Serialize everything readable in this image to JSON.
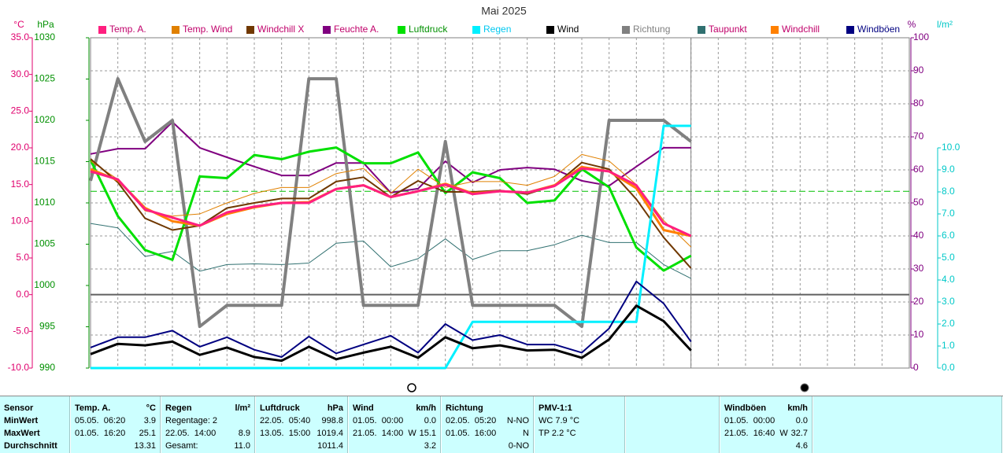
{
  "chart_data": {
    "type": "line",
    "title": "Mai 2025",
    "categories": [
      null,
      null,
      null,
      null,
      null,
      null,
      null,
      null,
      null,
      null,
      null,
      null,
      null,
      null,
      null,
      null,
      null,
      null,
      null,
      null,
      null,
      null,
      null,
      null,
      null,
      null,
      null,
      null,
      null,
      null,
      null
    ],
    "ylabel": "°C",
    "ycolor": "#e0006e",
    "ylim": [
      -10,
      35
    ],
    "yticks": [
      {
        "value": 35,
        "label": "35.0"
      },
      {
        "value": 30,
        "label": "30.0"
      },
      {
        "value": 25,
        "label": "25.0"
      },
      {
        "value": 20,
        "label": "20.0"
      },
      {
        "value": 15,
        "label": "15.0"
      },
      {
        "value": 10,
        "label": "10.0"
      },
      {
        "value": 5,
        "label": "5.0"
      },
      {
        "value": 0,
        "label": "0.0"
      },
      {
        "value": -5,
        "label": "-5.0"
      },
      {
        "value": -10,
        "label": "-10.0"
      }
    ],
    "y2label": "hPa",
    "y2color": "#009000",
    "y2lim": [
      990,
      1030
    ],
    "y2ticks": [
      1030,
      1025,
      1020,
      1015,
      1010,
      1005,
      1000,
      995,
      990
    ],
    "y3label": "%",
    "y3color": "#800080",
    "y3lim": [
      0,
      100
    ],
    "y3ticks": [
      100,
      90,
      80,
      70,
      60,
      50,
      40,
      30,
      20,
      10,
      0
    ],
    "y4label": "l/m²",
    "y4color": "#00c8c8",
    "y4lim": [
      0,
      15
    ],
    "y4ticks": [
      {
        "value": 10,
        "label": "10.0"
      },
      {
        "value": 9,
        "label": "9.0"
      },
      {
        "value": 8,
        "label": "8.0"
      },
      {
        "value": 7,
        "label": "7.0"
      },
      {
        "value": 6,
        "label": "6.0"
      },
      {
        "value": 5,
        "label": "5.0"
      },
      {
        "value": 4,
        "label": "4.0"
      },
      {
        "value": 3,
        "label": "3.0"
      },
      {
        "value": 2,
        "label": "2.0"
      },
      {
        "value": 1,
        "label": "1.0"
      },
      {
        "value": 0,
        "label": "0.0"
      }
    ],
    "grid": true,
    "series": [
      {
        "name": "Temp. A.",
        "color": "#ff1f7f",
        "text_color": "#c0006a",
        "width": 3,
        "axis": "y",
        "values": [
          16.8,
          15.7,
          11.6,
          10.5,
          9.4,
          11.2,
          12.0,
          12.5,
          12.5,
          14.4,
          14.9,
          13.3,
          14.1,
          15.0,
          13.7,
          14.1,
          13.9,
          14.8,
          17.2,
          16.8,
          14.9,
          9.7,
          8.0,
          null,
          null,
          null,
          null,
          null,
          null,
          null,
          null
        ]
      },
      {
        "name": "Temp. Wind",
        "color": "#e08000",
        "text_color": "#c0006a",
        "width": 1,
        "axis": "y",
        "values": [
          18.2,
          15.7,
          11.4,
          10.7,
          11.0,
          12.5,
          13.8,
          14.6,
          14.6,
          16.5,
          17.2,
          13.8,
          17.1,
          14.6,
          15.4,
          15.4,
          14.9,
          16.1,
          19.1,
          18.2,
          15.0,
          10.1,
          6.5,
          null,
          null,
          null,
          null,
          null,
          null,
          null,
          null
        ]
      },
      {
        "name": "Windchill X",
        "color": "#703800",
        "text_color": "#c0006a",
        "width": 2,
        "axis": "y",
        "values": [
          18.5,
          15.3,
          10.4,
          8.8,
          9.4,
          11.8,
          12.5,
          13.1,
          13.1,
          15.4,
          16.0,
          13.3,
          15.5,
          14.0,
          14.0,
          14.2,
          13.7,
          14.9,
          18.0,
          17.1,
          13.0,
          7.8,
          3.6,
          null,
          null,
          null,
          null,
          null,
          null,
          null,
          null
        ]
      },
      {
        "name": "Feuchte A.",
        "color": "#800080",
        "text_color": "#c0006a",
        "width": 2,
        "axis": "y3",
        "values": [
          64.8,
          66.4,
          66.4,
          74.5,
          66.7,
          63.8,
          61.0,
          58.3,
          58.3,
          62.1,
          62.1,
          53.1,
          54.3,
          62.6,
          56.2,
          60.0,
          60.7,
          60.2,
          56.7,
          55.2,
          61.0,
          66.7,
          66.7,
          null,
          null,
          null,
          null,
          null,
          null,
          null,
          null
        ]
      },
      {
        "name": "Luftdruck",
        "color": "#00e000",
        "text_color": "#009000",
        "width": 3,
        "axis": "y2",
        "values": [
          1015.2,
          1008.4,
          1004.3,
          1003.1,
          1013.2,
          1013.0,
          1015.8,
          1015.3,
          1016.2,
          1016.7,
          1014.8,
          1014.8,
          1016.1,
          1011.2,
          1013.7,
          1013.0,
          1010.0,
          1010.3,
          1014.1,
          1011.9,
          1004.6,
          1001.8,
          1003.6,
          null,
          null,
          null,
          null,
          null,
          null,
          null,
          null
        ]
      },
      {
        "name": "Regen",
        "color": "#00f0ff",
        "text_color": "#00c8f0",
        "width": 3,
        "axis": "y4",
        "values": [
          0,
          0,
          0,
          0,
          0,
          0,
          0,
          0,
          0,
          0,
          0,
          0,
          0,
          0,
          2.1,
          2.1,
          2.1,
          2.1,
          2.1,
          2.1,
          2.1,
          11.0,
          11.0,
          null,
          null,
          null,
          null,
          null,
          null,
          null,
          null
        ]
      },
      {
        "name": "Wind",
        "color": "#000000",
        "text_color": "#000000",
        "width": 3,
        "axis": "y",
        "values": [
          -8.1,
          -6.7,
          -6.9,
          -6.4,
          -8.2,
          -7.2,
          -8.5,
          -9.0,
          -7.1,
          -8.8,
          -7.9,
          -7.1,
          -8.6,
          -5.8,
          -7.3,
          -6.9,
          -7.6,
          -7.5,
          -8.6,
          -6.1,
          -1.5,
          -3.6,
          -7.6,
          null,
          null,
          null,
          null,
          null,
          null,
          null,
          null
        ]
      },
      {
        "name": "Richtung",
        "color": "#808080",
        "text_color": "#808080",
        "width": 4,
        "axis": "y3",
        "values": [
          56.7,
          87.6,
          68.6,
          75.0,
          12.6,
          19.0,
          19.0,
          19.0,
          87.6,
          87.6,
          19.0,
          19.0,
          19.0,
          68.6,
          19.0,
          19.0,
          19.0,
          19.0,
          12.6,
          75.0,
          75.0,
          75.0,
          68.6,
          null,
          null,
          null,
          null,
          null,
          null,
          null,
          null
        ]
      },
      {
        "name": "Taupunkt",
        "color": "#307070",
        "text_color": "#c0006a",
        "width": 1,
        "axis": "y",
        "values": [
          9.7,
          9.1,
          5.2,
          5.9,
          3.2,
          4.1,
          4.2,
          4.1,
          4.3,
          7.0,
          7.3,
          3.8,
          4.9,
          7.6,
          4.8,
          6.0,
          6.0,
          6.8,
          8.1,
          7.1,
          7.1,
          4.1,
          2.2,
          null,
          null,
          null,
          null,
          null,
          null,
          null,
          null
        ]
      },
      {
        "name": "Windchill",
        "color": "#ff8000",
        "text_color": "#c0006a",
        "width": 3,
        "axis": "y",
        "values": [
          17.1,
          15.6,
          11.8,
          10.0,
          9.4,
          11.0,
          11.9,
          12.5,
          12.6,
          14.4,
          14.9,
          13.3,
          14.1,
          15.1,
          13.8,
          14.1,
          13.9,
          14.9,
          17.4,
          16.8,
          14.5,
          8.8,
          8.0,
          null,
          null,
          null,
          null,
          null,
          null,
          null,
          null
        ]
      },
      {
        "name": "Windböen",
        "color": "#000080",
        "text_color": "#000080",
        "width": 2,
        "axis": "y",
        "values": [
          -7.2,
          -5.8,
          -5.8,
          -4.9,
          -7.1,
          -5.8,
          -7.5,
          -8.5,
          -5.7,
          -8.0,
          -6.8,
          -5.6,
          -7.9,
          -4.0,
          -6.2,
          -5.5,
          -6.8,
          -6.8,
          -7.9,
          -4.6,
          1.8,
          -1.2,
          -6.4,
          null,
          null,
          null,
          null,
          null,
          null,
          null,
          null
        ]
      }
    ]
  },
  "table": {
    "columns": [
      {
        "header": "Sensor",
        "rows": [
          {
            "text": "MinWert"
          },
          {
            "text": "MaxWert"
          },
          {
            "text": "Durchschnitt"
          }
        ]
      },
      {
        "header": "Temp. A.",
        "unit": "°C",
        "rows": [
          {
            "text": "05.05.  06:20",
            "value": "3.9"
          },
          {
            "text": "01.05.  16:20",
            "value": "25.1"
          },
          {
            "value": "13.31"
          }
        ]
      },
      {
        "header": "Regen",
        "unit": "l/m²",
        "rows": [
          {
            "text": "Regentage: 2"
          },
          {
            "text": "22.05.  14:00",
            "value": "8.9"
          },
          {
            "text": "Gesamt:",
            "value": "11.0"
          }
        ]
      },
      {
        "header": "Luftdruck",
        "unit": "hPa",
        "rows": [
          {
            "text": "22.05.  05:40",
            "value": "998.8"
          },
          {
            "text": "13.05.  15:00",
            "value": "1019.4"
          },
          {
            "value": "1011.4"
          }
        ]
      },
      {
        "header": "Wind",
        "unit": "km/h",
        "rows": [
          {
            "text": "01.05.  00:00",
            "value": "0.0"
          },
          {
            "text": "21.05.  14:00  W",
            "value": "15.1"
          },
          {
            "value": "3.2"
          }
        ]
      },
      {
        "header": "Richtung",
        "rows": [
          {
            "text": "02.05.  05:20",
            "value": "N-NO"
          },
          {
            "text": "01.05.  16:00",
            "value": "N"
          },
          {
            "value": "0-NO"
          }
        ]
      },
      {
        "header": "PMV-1:1",
        "rows": [
          {
            "text": "WC 7.9 °C"
          },
          {
            "text": "TP 2.2 °C"
          }
        ]
      },
      {
        "rows": []
      },
      {
        "header": "Windböen",
        "unit": "km/h",
        "rows": [
          {
            "text": "01.05.  00:00",
            "value": "0.0"
          },
          {
            "text": "21.05.  16:40  W",
            "value": "32.7"
          },
          {
            "value": "4.6"
          }
        ]
      },
      {
        "rows": []
      }
    ]
  }
}
